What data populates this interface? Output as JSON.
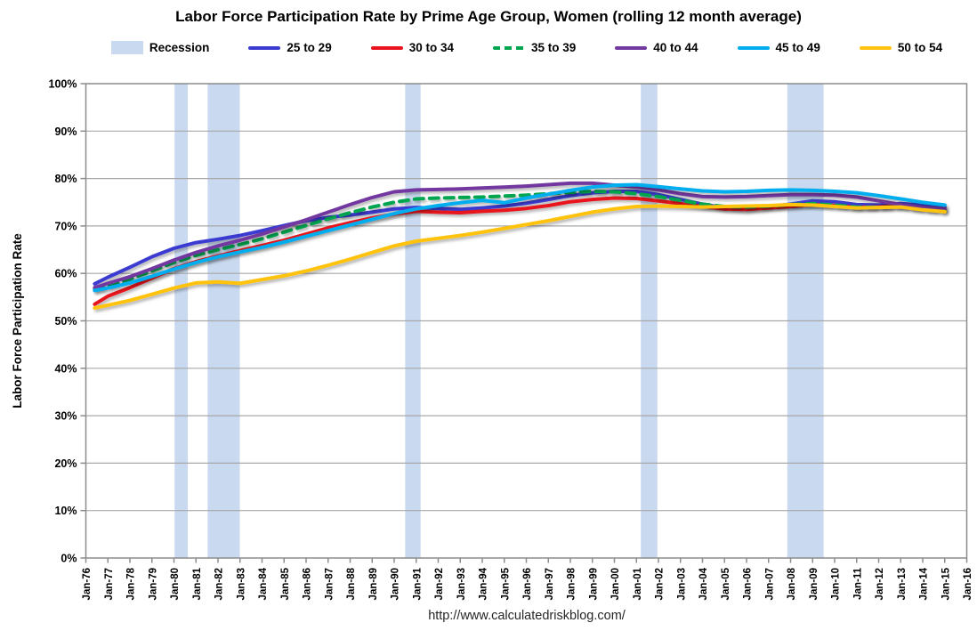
{
  "page": {
    "title": "Labor Force Participation Rate by Prime Age Group, Women (rolling 12 month average)",
    "footer_url": "http://www.calculatedriskblog.com/"
  },
  "colors": {
    "recession_band": "#C9D9EF",
    "gridline": "#A8A8A8",
    "axis": "#8C8C8C",
    "text": "#000000"
  },
  "legend": {
    "items": [
      {
        "label": "Recession",
        "type": "band",
        "color": "#C9D9EF"
      },
      {
        "label": "25 to 29",
        "type": "line",
        "color": "#3B3BD1"
      },
      {
        "label": "30 to 34",
        "type": "line",
        "color": "#E8131D"
      },
      {
        "label": "35 to 39",
        "type": "line-dashed",
        "color": "#00A550"
      },
      {
        "label": "40 to 44",
        "type": "line",
        "color": "#7239A0"
      },
      {
        "label": "45 to 49",
        "type": "line",
        "color": "#00AEEF"
      },
      {
        "label": "50 to 54",
        "type": "line",
        "color": "#FFC20E"
      }
    ]
  },
  "chart_data": {
    "type": "line",
    "title": "Labor Force Participation Rate by Prime Age Group, Women (rolling 12 month average)",
    "xlabel": "",
    "ylabel": "Labor Force Participation Rate",
    "ylim": [
      0,
      100
    ],
    "ytick_interval": 10,
    "grid": "horizontal",
    "legend_position": "top",
    "ytick_labels": [
      "0%",
      "10%",
      "20%",
      "30%",
      "40%",
      "50%",
      "60%",
      "70%",
      "80%",
      "90%",
      "100%"
    ],
    "xtick_labels": [
      "Jan-76",
      "Jan-77",
      "Jan-78",
      "Jan-79",
      "Jan-80",
      "Jan-81",
      "Jan-82",
      "Jan-83",
      "Jan-84",
      "Jan-85",
      "Jan-86",
      "Jan-87",
      "Jan-88",
      "Jan-89",
      "Jan-90",
      "Jan-91",
      "Jan-92",
      "Jan-93",
      "Jan-94",
      "Jan-95",
      "Jan-96",
      "Jan-97",
      "Jan-98",
      "Jan-99",
      "Jan-00",
      "Jan-01",
      "Jan-02",
      "Jan-03",
      "Jan-04",
      "Jan-05",
      "Jan-06",
      "Jan-07",
      "Jan-08",
      "Jan-09",
      "Jan-10",
      "Jan-11",
      "Jan-12",
      "Jan-13",
      "Jan-14",
      "Jan-15",
      "Jan-16"
    ],
    "x_axis_start_year": 1976,
    "x_axis_end_year": 2016,
    "recession_bands": [
      [
        1980.03,
        1980.63
      ],
      [
        1981.53,
        1982.99
      ],
      [
        1990.5,
        1991.2
      ],
      [
        2001.2,
        2001.95
      ],
      [
        2007.85,
        2009.5
      ]
    ],
    "x_years": [
      1976.4,
      1977,
      1978,
      1979,
      1980,
      1981,
      1982,
      1983,
      1984,
      1985,
      1986,
      1987,
      1988,
      1989,
      1990,
      1991,
      1992,
      1993,
      1994,
      1995,
      1996,
      1997,
      1998,
      1999,
      2000,
      2001,
      2002,
      2003,
      2004,
      2005,
      2006,
      2007,
      2008,
      2009,
      2010,
      2011,
      2012,
      2013,
      2014,
      2015
    ],
    "series": [
      {
        "name": "25 to 29",
        "color": "#3B3BD1",
        "dashed": false,
        "values": [
          57.8,
          59.2,
          61.3,
          63.5,
          65.3,
          66.5,
          67.2,
          68.0,
          69.0,
          70.1,
          71.1,
          71.8,
          72.3,
          72.9,
          73.6,
          73.9,
          73.7,
          73.5,
          73.8,
          74.2,
          74.8,
          75.6,
          76.4,
          77.0,
          77.3,
          77.3,
          76.6,
          75.6,
          74.6,
          73.8,
          73.5,
          74.0,
          74.6,
          75.3,
          75.1,
          74.5,
          74.4,
          74.7,
          74.4,
          74.0
        ]
      },
      {
        "name": "30 to 34",
        "color": "#E8131D",
        "dashed": false,
        "values": [
          53.5,
          55.2,
          57.0,
          59.0,
          61.0,
          62.5,
          63.7,
          64.8,
          65.9,
          67.0,
          68.3,
          69.6,
          70.7,
          71.7,
          72.5,
          73.1,
          72.9,
          72.8,
          73.1,
          73.3,
          73.7,
          74.3,
          75.1,
          75.6,
          75.9,
          75.8,
          75.3,
          74.7,
          74.1,
          73.6,
          73.5,
          73.8,
          74.1,
          74.5,
          74.3,
          73.9,
          74.0,
          74.4,
          73.9,
          73.5
        ]
      },
      {
        "name": "35 to 39",
        "color": "#00A550",
        "dashed": true,
        "values": [
          56.6,
          57.3,
          58.8,
          60.5,
          62.3,
          63.8,
          65.0,
          66.1,
          67.3,
          68.7,
          70.1,
          71.5,
          72.8,
          74.0,
          75.0,
          75.7,
          75.9,
          76.0,
          76.1,
          76.3,
          76.5,
          76.8,
          77.1,
          77.3,
          77.2,
          76.8,
          76.2,
          75.4,
          74.6,
          74.1,
          74.0,
          74.2,
          74.5,
          74.7,
          74.4,
          74.0,
          73.9,
          74.1,
          73.6,
          73.2
        ]
      },
      {
        "name": "40 to 44",
        "color": "#7239A0",
        "dashed": false,
        "values": [
          57.0,
          57.9,
          59.3,
          61.0,
          62.8,
          64.4,
          65.8,
          67.0,
          68.3,
          69.8,
          71.3,
          72.9,
          74.5,
          76.0,
          77.2,
          77.6,
          77.7,
          77.8,
          78.0,
          78.2,
          78.4,
          78.7,
          79.0,
          79.0,
          78.6,
          78.2,
          77.6,
          76.8,
          76.2,
          76.1,
          76.2,
          76.4,
          76.6,
          76.6,
          76.5,
          76.1,
          75.3,
          74.5,
          73.9,
          73.7
        ]
      },
      {
        "name": "45 to 49",
        "color": "#00AEEF",
        "dashed": false,
        "values": [
          56.4,
          56.9,
          58.0,
          59.4,
          60.9,
          62.3,
          63.5,
          64.5,
          65.5,
          66.6,
          67.8,
          69.0,
          70.2,
          71.4,
          72.6,
          73.6,
          74.3,
          74.9,
          75.4,
          74.9,
          75.9,
          76.7,
          77.5,
          78.2,
          78.6,
          78.7,
          78.3,
          77.8,
          77.4,
          77.2,
          77.3,
          77.5,
          77.6,
          77.5,
          77.3,
          77.0,
          76.4,
          75.7,
          75.0,
          74.4
        ]
      },
      {
        "name": "50 to 54",
        "color": "#FFC20E",
        "dashed": false,
        "values": [
          52.7,
          53.3,
          54.3,
          55.6,
          56.9,
          58.0,
          58.2,
          57.9,
          58.7,
          59.5,
          60.5,
          61.7,
          63.0,
          64.4,
          65.8,
          66.8,
          67.4,
          68.0,
          68.7,
          69.5,
          70.3,
          71.1,
          72.0,
          72.9,
          73.6,
          74.1,
          74.2,
          74.1,
          74.0,
          74.1,
          74.2,
          74.3,
          74.5,
          74.4,
          74.1,
          73.8,
          73.9,
          74.0,
          73.4,
          73.0
        ]
      }
    ]
  }
}
